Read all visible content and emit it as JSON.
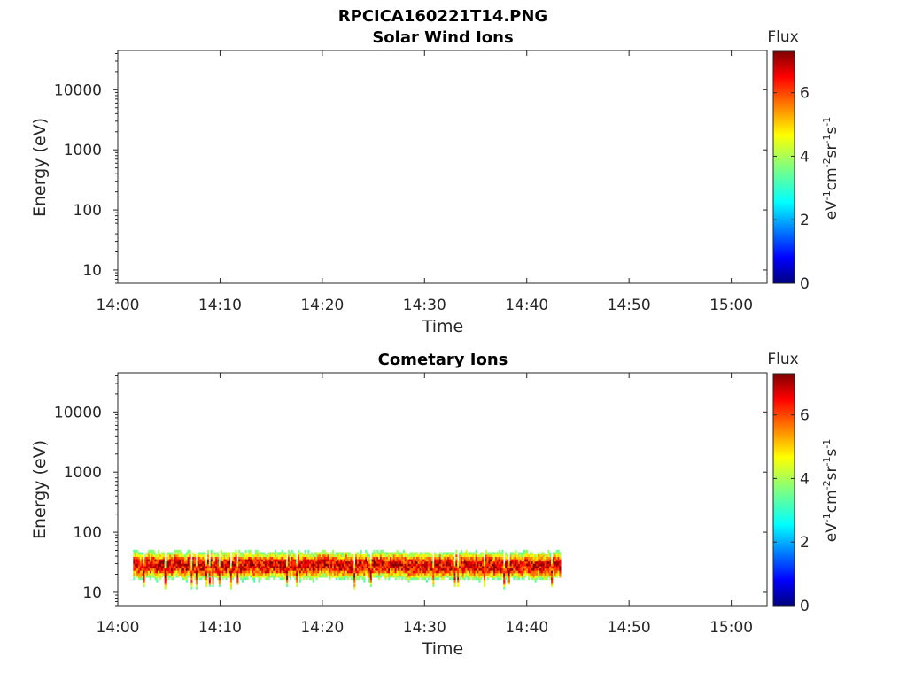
{
  "figure_title": "RPCICA160221T14.PNG",
  "colorbar": {
    "title": "Flux",
    "label_base": "eV",
    "label_sup1": "-1",
    "label_mid1": "cm",
    "label_sup2": "-2",
    "label_mid2": "sr",
    "label_sup3": "-1",
    "label_mid3": "s",
    "label_sup4": "-1",
    "range": [
      0,
      7.3
    ],
    "ticks": [
      "0",
      "2",
      "4",
      "6"
    ],
    "colormap": "jet"
  },
  "chart_data": [
    {
      "type": "heatmap",
      "title": "Solar Wind Ions",
      "xlabel": "Time",
      "ylabel": "Energy (eV)",
      "xticks": [
        "14:00",
        "14:10",
        "14:20",
        "14:30",
        "14:40",
        "14:50",
        "15:00"
      ],
      "yticks": [
        "10",
        "100",
        "1000",
        "10000"
      ],
      "yscale": "log",
      "ylim": [
        6,
        45000
      ],
      "xlim_minutes": [
        0,
        63.5
      ],
      "bands": []
    },
    {
      "type": "heatmap",
      "title": "Cometary Ions",
      "xlabel": "Time",
      "ylabel": "Energy (eV)",
      "xticks": [
        "14:00",
        "14:10",
        "14:20",
        "14:30",
        "14:40",
        "14:50",
        "15:00"
      ],
      "yticks": [
        "10",
        "100",
        "1000",
        "10000"
      ],
      "yscale": "log",
      "ylim": [
        6,
        45000
      ],
      "xlim_minutes": [
        0,
        63.5
      ],
      "bands": [
        {
          "t_start": "14:01:30",
          "t_end": "14:43:20",
          "energy_min": 15,
          "energy_max": 85,
          "peak_energy": 27,
          "peak_flux": 7
        }
      ]
    }
  ]
}
